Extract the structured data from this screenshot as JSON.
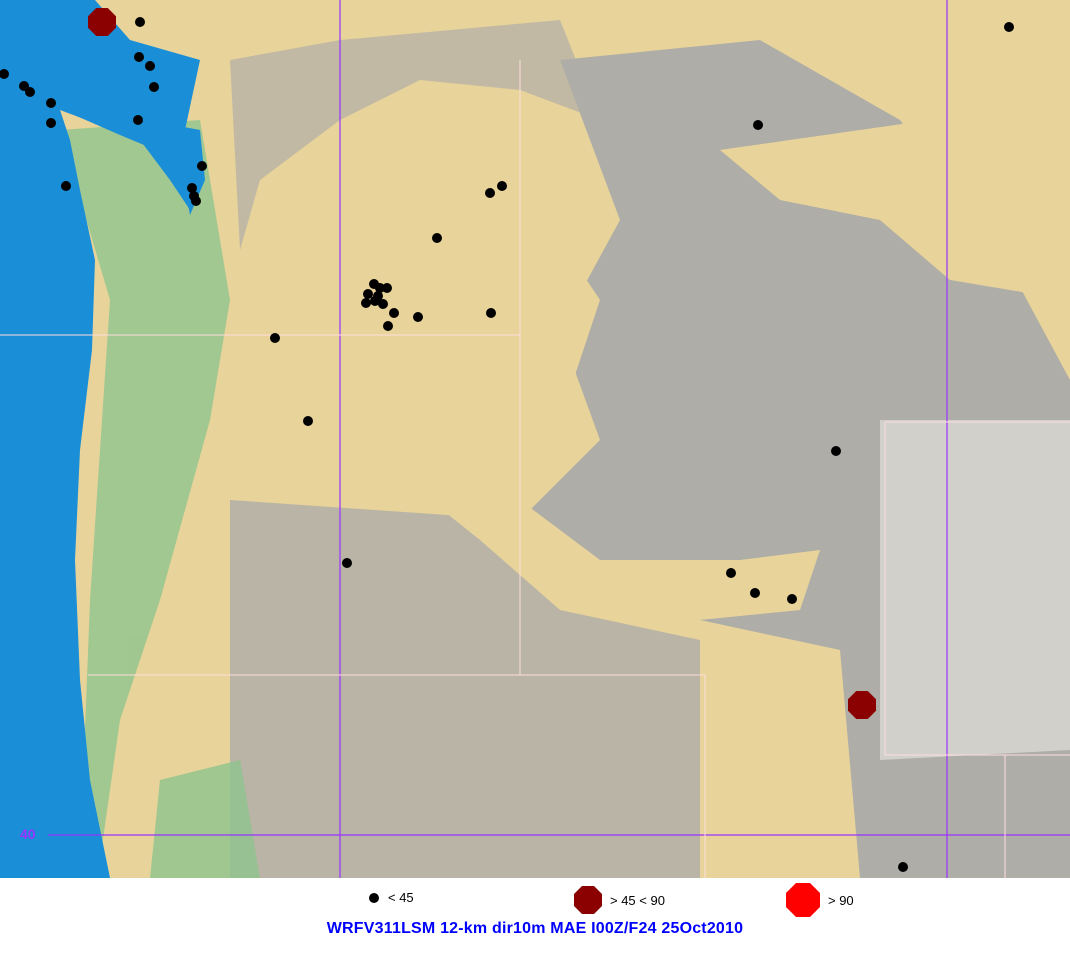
{
  "map": {
    "gridline_labels": {
      "lat_40": "40"
    },
    "colors": {
      "ocean": "#1a8fd8",
      "land": "#e8d49a",
      "mountains": "#a8a8a8",
      "coast_green": "#7fbf7f",
      "gridline": "#9933ff"
    },
    "marker_colors": {
      "low": "#000000",
      "mid": "#8b0000",
      "high": "#ff0000"
    }
  },
  "legend": [
    {
      "label": "< 45",
      "icon": "black-dot",
      "color": "#000000"
    },
    {
      "label": "> 45 < 90",
      "icon": "dark-red-octagon",
      "color": "#8b0000"
    },
    {
      "label": "> 90",
      "icon": "red-octagon",
      "color": "#ff0000"
    }
  ],
  "title": "WRFV311LSM 12-km dir10m MAE I00Z/F24 25Oct2010"
}
